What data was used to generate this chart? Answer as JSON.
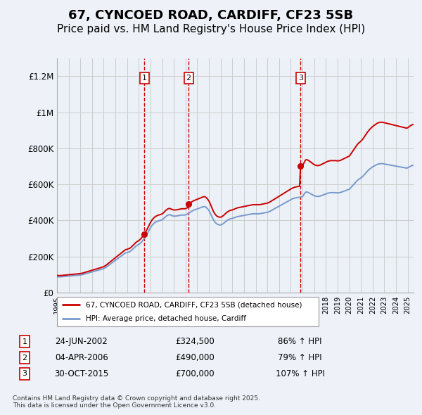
{
  "title": "67, CYNCOED ROAD, CARDIFF, CF23 5SB",
  "subtitle": "Price paid vs. HM Land Registry's House Price Index (HPI)",
  "title_fontsize": 13,
  "subtitle_fontsize": 11,
  "ylabel_ticks": [
    "£0",
    "£200K",
    "£400K",
    "£600K",
    "£800K",
    "£1M",
    "£1.2M"
  ],
  "ytick_vals": [
    0,
    200000,
    400000,
    600000,
    800000,
    1000000,
    1200000
  ],
  "ylim": [
    0,
    1300000
  ],
  "xlim_start": 1995.0,
  "xlim_end": 2025.5,
  "background_color": "#eef2f8",
  "plot_bg_color": "#ffffff",
  "grid_color": "#cccccc",
  "sale_line_color": "#cc0000",
  "hpi_line_color": "#7799cc",
  "sale_marker_color": "#cc0000",
  "vline_color": "#cc0000",
  "vline_style": "--",
  "transactions": [
    {
      "num": 1,
      "date_str": "24-JUN-2002",
      "date_x": 2002.48,
      "price": 324500,
      "label": "£324,500",
      "hpi_pct": "86% ↑ HPI"
    },
    {
      "num": 2,
      "date_str": "04-APR-2006",
      "date_x": 2006.26,
      "price": 490000,
      "label": "£490,000",
      "hpi_pct": "79% ↑ HPI"
    },
    {
      "num": 3,
      "date_str": "30-OCT-2015",
      "date_x": 2015.83,
      "price": 700000,
      "label": "£700,000",
      "hpi_pct": "107% ↑ HPI"
    }
  ],
  "legend_sale_label": "67, CYNCOED ROAD, CARDIFF, CF23 5SB (detached house)",
  "legend_hpi_label": "HPI: Average price, detached house, Cardiff",
  "footnote": "Contains HM Land Registry data © Crown copyright and database right 2025.\nThis data is licensed under the Open Government Licence v3.0.",
  "hpi_data_y": [
    88000,
    87500,
    87000,
    87200,
    87500,
    88000,
    88500,
    89000,
    89500,
    90000,
    90500,
    91000,
    91500,
    92000,
    92500,
    93000,
    93500,
    94000,
    94500,
    95000,
    95500,
    96000,
    96500,
    97000,
    97500,
    98500,
    99500,
    101000,
    102500,
    104000,
    105500,
    107000,
    108500,
    110000,
    111500,
    113000,
    114500,
    116000,
    117500,
    119000,
    120500,
    122000,
    123500,
    125000,
    126500,
    128000,
    129500,
    131000,
    133000,
    136000,
    139000,
    143000,
    147000,
    151000,
    155000,
    159000,
    163000,
    167000,
    171000,
    175000,
    179000,
    183000,
    187000,
    191000,
    195000,
    199000,
    203000,
    207000,
    211000,
    215000,
    219000,
    221000,
    222000,
    224000,
    226000,
    228000,
    232000,
    237000,
    242000,
    247000,
    252000,
    257000,
    261000,
    264000,
    267000,
    271000,
    276000,
    282000,
    288000,
    295000,
    302000,
    311000,
    320000,
    330000,
    340000,
    350000,
    360000,
    368000,
    375000,
    381000,
    386000,
    390000,
    393000,
    395000,
    397000,
    399000,
    400000,
    402000,
    404000,
    408000,
    413000,
    418000,
    423000,
    427000,
    430000,
    432000,
    431000,
    429000,
    427000,
    425000,
    424000,
    424000,
    424000,
    425000,
    426000,
    427000,
    428000,
    429000,
    430000,
    430000,
    430000,
    430000,
    431000,
    433000,
    436000,
    439000,
    443000,
    447000,
    450000,
    453000,
    456000,
    458000,
    460000,
    462000,
    464000,
    466000,
    468000,
    470000,
    472000,
    474000,
    476000,
    477000,
    476000,
    473000,
    468000,
    462000,
    455000,
    445000,
    433000,
    421000,
    410000,
    400000,
    392000,
    386000,
    381000,
    378000,
    376000,
    375000,
    375000,
    377000,
    380000,
    384000,
    388000,
    393000,
    397000,
    401000,
    404000,
    407000,
    409000,
    410000,
    411000,
    413000,
    415000,
    417000,
    419000,
    421000,
    422000,
    423000,
    424000,
    425000,
    426000,
    427000,
    428000,
    429000,
    430000,
    431000,
    432000,
    433000,
    434000,
    435000,
    436000,
    437000,
    437000,
    437000,
    437000,
    437000,
    437000,
    437000,
    437000,
    438000,
    439000,
    440000,
    441000,
    442000,
    443000,
    444000,
    445000,
    447000,
    449000,
    452000,
    455000,
    458000,
    461000,
    464000,
    467000,
    470000,
    473000,
    476000,
    479000,
    482000,
    485000,
    488000,
    491000,
    494000,
    497000,
    500000,
    503000,
    506000,
    509000,
    512000,
    515000,
    518000,
    520000,
    522000,
    524000,
    525000,
    526000,
    527000,
    528000,
    529000,
    530000,
    531000,
    532000,
    540000,
    548000,
    556000,
    558000,
    557000,
    555000,
    552000,
    549000,
    546000,
    543000,
    540000,
    537000,
    535000,
    534000,
    533000,
    533000,
    534000,
    535000,
    537000,
    539000,
    541000,
    543000,
    545000,
    547000,
    549000,
    551000,
    552000,
    553000,
    554000,
    554000,
    554000,
    554000,
    554000,
    554000,
    553000,
    553000,
    553000,
    554000,
    555000,
    557000,
    559000,
    561000,
    563000,
    565000,
    567000,
    569000,
    571000,
    573000,
    578000,
    584000,
    590000,
    596000,
    602000,
    608000,
    614000,
    620000,
    625000,
    629000,
    632000,
    636000,
    640000,
    645000,
    651000,
    657000,
    663000,
    669000,
    675000,
    680000,
    685000,
    689000,
    693000,
    697000,
    700000,
    703000,
    706000,
    709000,
    711000,
    713000,
    714000,
    715000,
    715000,
    715000,
    714000,
    713000,
    712000,
    711000,
    710000,
    709000,
    708000,
    707000,
    706000,
    705000,
    704000,
    703000,
    702000,
    701000,
    700000,
    699000,
    698000,
    697000,
    696000,
    695000,
    694000,
    693000,
    692000,
    691000,
    690000,
    692000,
    695000,
    698000,
    701000,
    703000,
    705000,
    706000,
    707000,
    708000,
    709000,
    710000,
    710000,
    711000,
    712000
  ]
}
